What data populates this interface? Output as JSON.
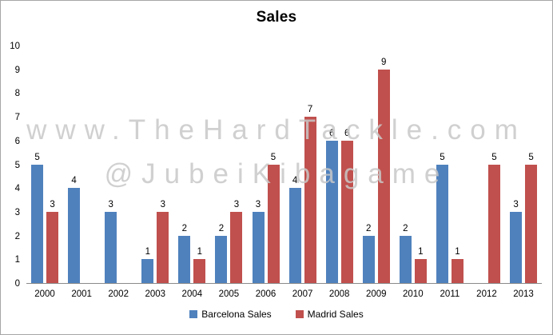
{
  "chart_data": {
    "type": "bar",
    "title": "Sales",
    "categories": [
      "2000",
      "2001",
      "2002",
      "2003",
      "2004",
      "2005",
      "2006",
      "2007",
      "2008",
      "2009",
      "2010",
      "2011",
      "2012",
      "2013"
    ],
    "series": [
      {
        "name": "Barcelona Sales",
        "color": "#4f81bd",
        "values": [
          5,
          4,
          3,
          1,
          2,
          2,
          3,
          4,
          6,
          2,
          2,
          5,
          0,
          3
        ]
      },
      {
        "name": "Madrid Sales",
        "color": "#c0504d",
        "values": [
          3,
          0,
          0,
          3,
          1,
          3,
          5,
          7,
          6,
          9,
          1,
          1,
          5,
          5
        ]
      }
    ],
    "ylim": [
      0,
      10
    ],
    "ytick_step": 1,
    "grid": false,
    "data_labels": true,
    "hide_zero_bars": true,
    "legend_position": "bottom",
    "axis_color": "#8a8a8a"
  },
  "watermark": {
    "line1": "www.TheHardTackle.com",
    "line2": "@JubeiKibagame",
    "color": "#c8c8c8"
  }
}
